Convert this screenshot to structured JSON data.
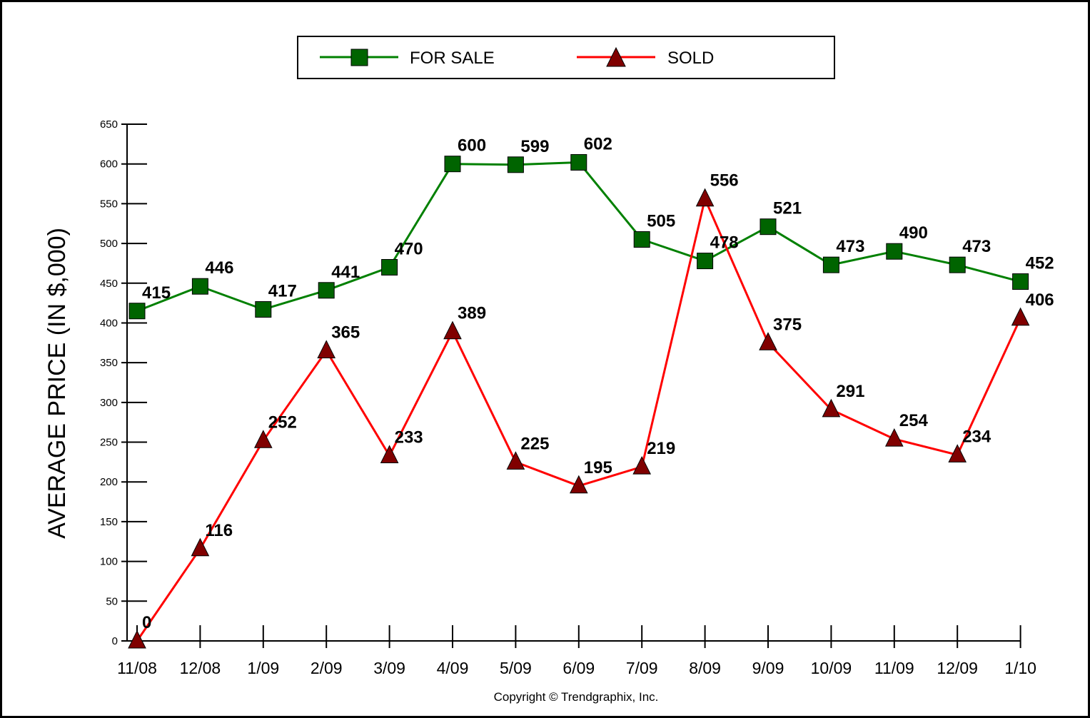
{
  "chart_data": {
    "type": "line",
    "categories": [
      "11/08",
      "12/08",
      "1/09",
      "2/09",
      "3/09",
      "4/09",
      "5/09",
      "6/09",
      "7/09",
      "8/09",
      "9/09",
      "10/09",
      "11/09",
      "12/09",
      "1/10"
    ],
    "series": [
      {
        "name": "FOR SALE",
        "color": "#008000",
        "marker_color": "#006400",
        "marker": "square",
        "values": [
          415,
          446,
          417,
          441,
          470,
          600,
          599,
          602,
          505,
          478,
          521,
          473,
          490,
          473,
          452
        ],
        "labels": [
          "415",
          "446",
          "417",
          "441",
          "470",
          "600",
          "599",
          "602",
          "505",
          "478",
          "521",
          "473",
          "490",
          "473",
          "452"
        ]
      },
      {
        "name": "SOLD",
        "color": "#ff0000",
        "marker_color": "#800000",
        "marker": "triangle",
        "values": [
          0,
          116,
          252,
          365,
          233,
          389,
          225,
          195,
          219,
          556,
          375,
          291,
          254,
          234,
          406
        ],
        "labels": [
          "0",
          "116",
          "252",
          "365",
          "233",
          "389",
          "225",
          "195",
          "219",
          "556",
          "375",
          "291",
          "254",
          "234",
          "406"
        ]
      }
    ],
    "ylabel": "AVERAGE PRICE (IN $,000)",
    "xlabel": "",
    "ylim": [
      0,
      650
    ],
    "yticks": [
      0,
      50,
      100,
      150,
      200,
      250,
      300,
      350,
      400,
      450,
      500,
      550,
      600,
      650
    ],
    "ytick_labels": [
      "0",
      "50",
      "100",
      "150",
      "200",
      "250",
      "300",
      "350",
      "400",
      "450",
      "500",
      "550",
      "600",
      "650"
    ],
    "grid": false,
    "legend_position": "top-center"
  },
  "footer": {
    "copyright": "Copyright © Trendgraphix, Inc."
  }
}
